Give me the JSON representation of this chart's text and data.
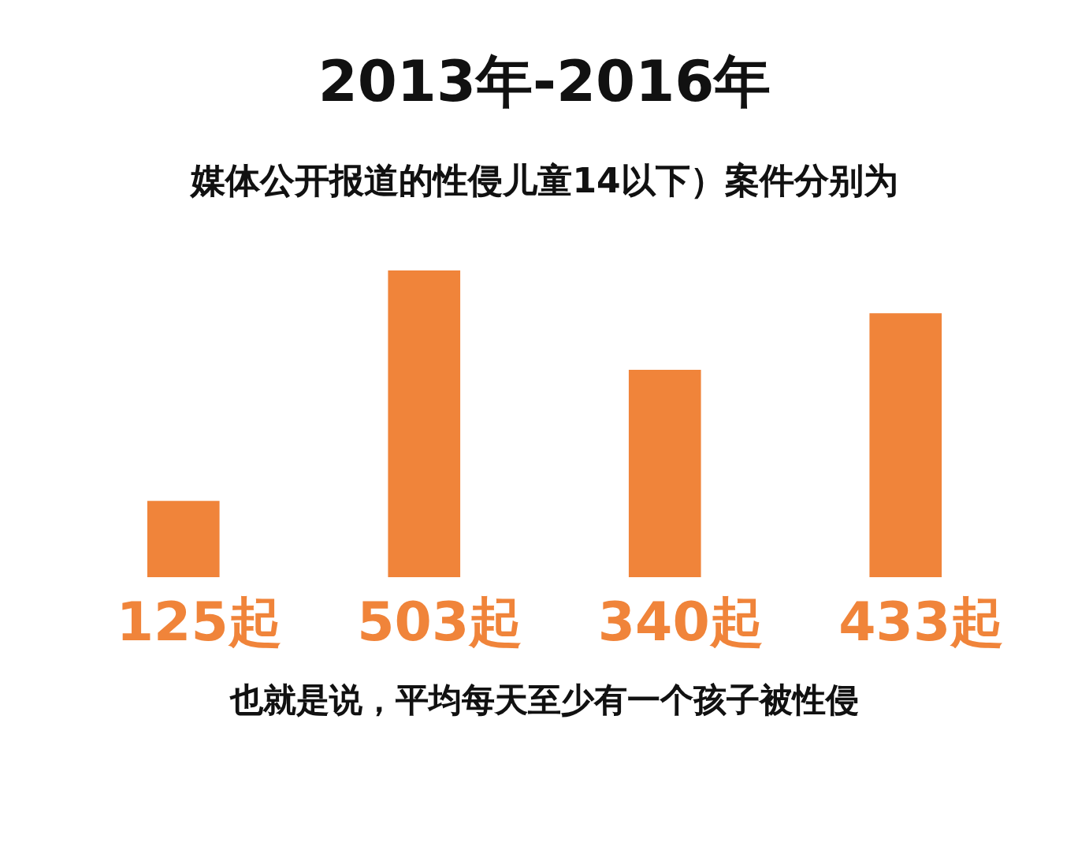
{
  "chart_data": {
    "type": "bar",
    "title": "2013年-2016年",
    "subtitle": "媒体公开报道的性侵儿童14以下）案件分别为",
    "categories": [
      null,
      null,
      null,
      null
    ],
    "values": [
      125,
      503,
      340,
      433
    ],
    "value_labels": [
      "125起",
      "503起",
      "340起",
      "433起"
    ],
    "color": "#f0843a",
    "annotations": [
      "也就是说，平均每天至少有一个孩子被性侵"
    ]
  }
}
